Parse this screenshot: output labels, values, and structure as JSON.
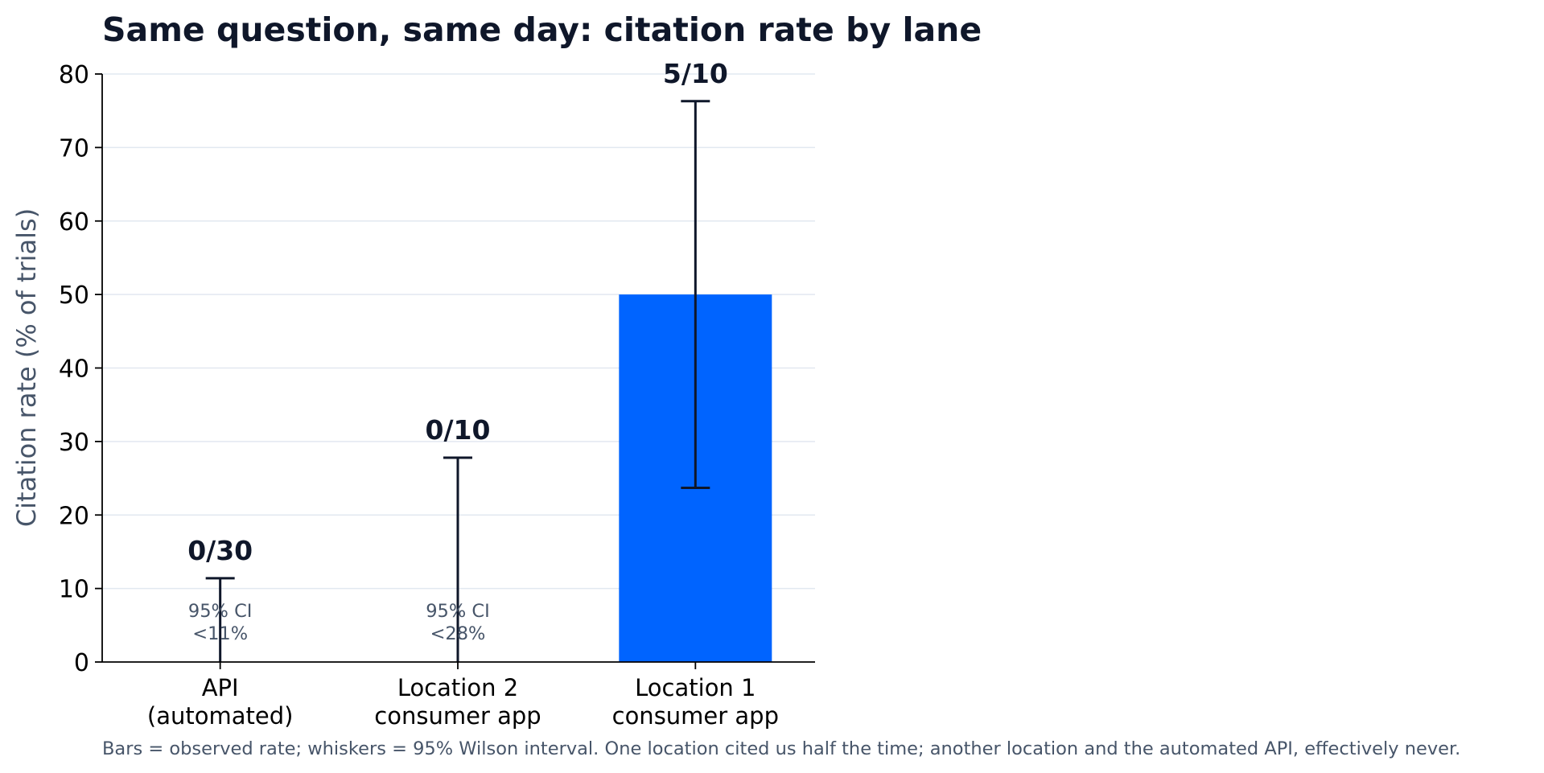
{
  "chart_data": {
    "type": "bar",
    "title": "Same question, same day: citation rate by lane",
    "ylabel": "Citation rate (% of trials)",
    "xlabel": "",
    "ylim": [
      0,
      80
    ],
    "yticks": [
      0,
      10,
      20,
      30,
      40,
      50,
      60,
      70,
      80
    ],
    "grid": true,
    "categories": [
      [
        "API",
        "(automated)"
      ],
      [
        "Location 2",
        "consumer app"
      ],
      [
        "Location 1",
        "consumer app"
      ]
    ],
    "values": [
      0,
      0,
      50
    ],
    "ci_low": [
      0,
      0,
      23.7
    ],
    "ci_high": [
      11.4,
      27.8,
      76.3
    ],
    "count_labels": [
      "0/30",
      "0/10",
      "5/10"
    ],
    "ci_notes": [
      [
        "95% CI",
        "<11%"
      ],
      [
        "95% CI",
        "<28%"
      ],
      null
    ],
    "caption": "Bars = observed rate; whiskers = 95% Wilson interval. One location cited us half the time; another location and the automated API, effectively never.",
    "colors": {
      "bar": "#0064ff",
      "whisker": "#0f172a",
      "grid": "#e2e8f0",
      "axis": "#000000"
    }
  }
}
